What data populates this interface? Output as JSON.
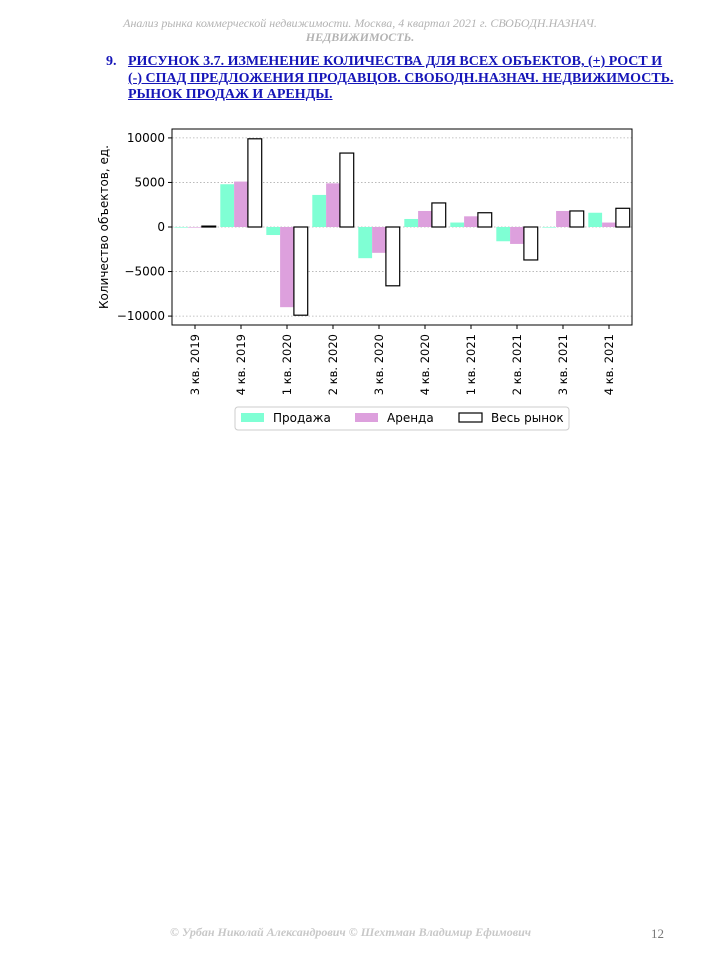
{
  "header": {
    "line1": "Анализ рынка коммерческой недвижимости.  Москва,  4 квартал 2021 г.  СВОБОДН.НАЗНАЧ.",
    "line2": "НЕДВИЖИМОСТЬ."
  },
  "caption": {
    "number": "9.",
    "text": "РИСУНОК 3.7. ИЗМЕНЕНИЕ КОЛИЧЕСТВА ДЛЯ ВСЕХ ОБЪЕКТОВ, (+) РОСТ И (-) СПАД ПРЕДЛОЖЕНИЯ ПРОДАВЦОВ. СВОБОДН.НАЗНАЧ. НЕДВИЖИМОСТЬ. РЫНОК ПРОДАЖ И АРЕНДЫ."
  },
  "footer": {
    "text": "© Урбан Николай Александрович   © Шехтман Владимир Ефимович",
    "page": "12"
  },
  "chart_data": {
    "type": "bar",
    "title": "",
    "xlabel": "",
    "ylabel": "Количество объектов, ед.",
    "ylim": [
      -11000,
      11000
    ],
    "yticks": [
      -10000,
      -5000,
      0,
      5000,
      10000
    ],
    "ytick_labels": [
      "−10000",
      "−5000",
      "0",
      "5000",
      "10000"
    ],
    "grid": "horizontal dotted",
    "legend_position": "below",
    "categories": [
      "3 кв. 2019",
      "4 кв. 2019",
      "1 кв. 2020",
      "2 кв. 2020",
      "3 кв. 2020",
      "4 кв. 2020",
      "1 кв. 2021",
      "2 кв. 2021",
      "3 кв. 2021",
      "4 кв. 2021"
    ],
    "series": [
      {
        "name": "Продажа",
        "color": "#7fffd4",
        "style": "filled",
        "values": [
          0,
          4800,
          -900,
          3600,
          -3500,
          900,
          500,
          -1600,
          0,
          1600
        ]
      },
      {
        "name": "Аренда",
        "color": "#dda0dd",
        "style": "filled",
        "values": [
          0,
          5100,
          -9000,
          4900,
          -2900,
          1800,
          1200,
          -1900,
          1800,
          500
        ]
      },
      {
        "name": "Весь рынок",
        "color": "#000000",
        "style": "outline",
        "values": [
          100,
          9900,
          -9900,
          8300,
          -6600,
          2700,
          1600,
          -3700,
          1800,
          2100
        ]
      }
    ]
  }
}
